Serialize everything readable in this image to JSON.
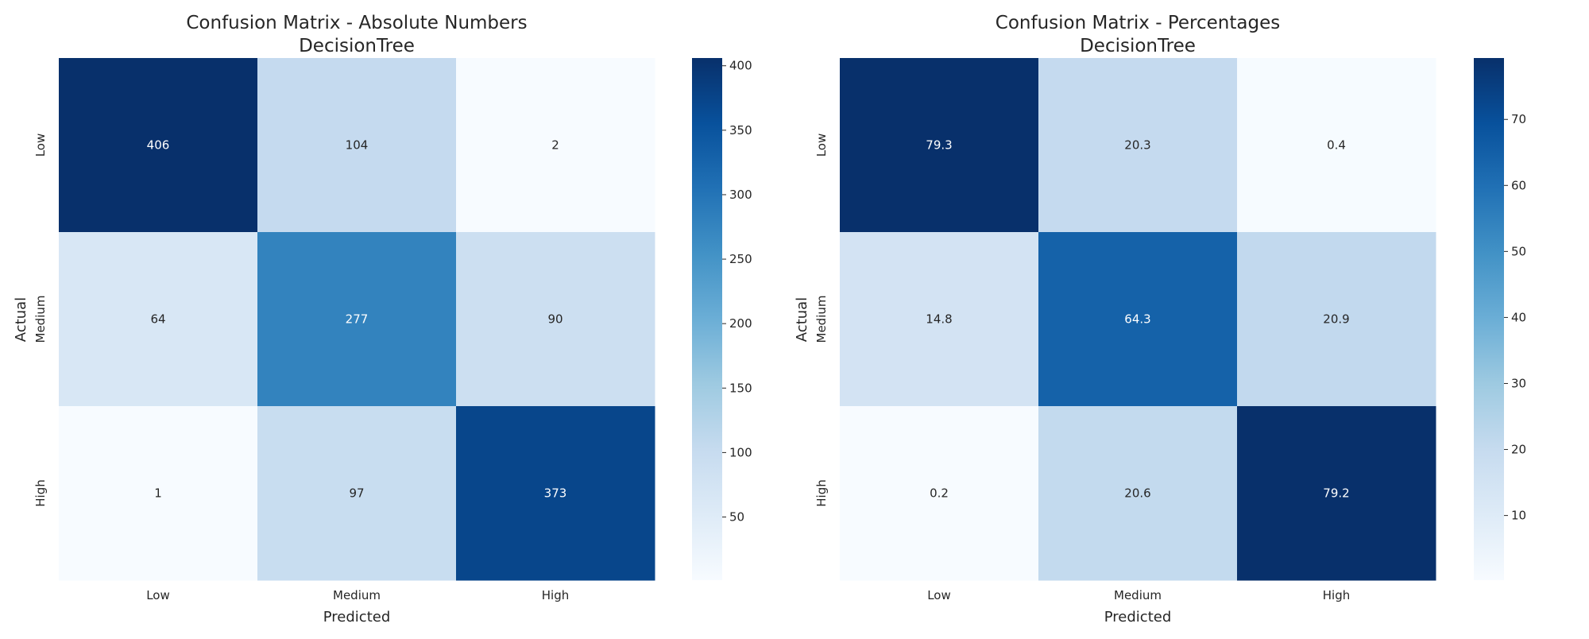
{
  "chart_data": [
    {
      "type": "heatmap",
      "title": "Confusion Matrix - Absolute Numbers",
      "subtitle": "DecisionTree",
      "xlabel": "Predicted",
      "ylabel": "Actual",
      "x_categories": [
        "Low",
        "Medium",
        "High"
      ],
      "y_categories": [
        "Low",
        "Medium",
        "High"
      ],
      "values": [
        [
          406,
          104,
          2
        ],
        [
          64,
          277,
          90
        ],
        [
          1,
          97,
          373
        ]
      ],
      "value_labels": [
        [
          "406",
          "104",
          "2"
        ],
        [
          "64",
          "277",
          "90"
        ],
        [
          "1",
          "97",
          "373"
        ]
      ],
      "colorbar": {
        "range": [
          1,
          406
        ],
        "ticks": [
          50,
          100,
          150,
          200,
          250,
          300,
          350,
          400
        ]
      },
      "colormap": "Blues",
      "grid": false
    },
    {
      "type": "heatmap",
      "title": "Confusion Matrix - Percentages",
      "subtitle": "DecisionTree",
      "xlabel": "Predicted",
      "ylabel": "Actual",
      "x_categories": [
        "Low",
        "Medium",
        "High"
      ],
      "y_categories": [
        "Low",
        "Medium",
        "High"
      ],
      "values": [
        [
          79.3,
          20.3,
          0.4
        ],
        [
          14.8,
          64.3,
          20.9
        ],
        [
          0.2,
          20.6,
          79.2
        ]
      ],
      "value_labels": [
        [
          "79.3",
          "20.3",
          "0.4"
        ],
        [
          "14.8",
          "64.3",
          "20.9"
        ],
        [
          "0.2",
          "20.6",
          "79.2"
        ]
      ],
      "colorbar": {
        "range": [
          0.2,
          79.3
        ],
        "ticks": [
          10,
          20,
          30,
          40,
          50,
          60,
          70
        ]
      },
      "colormap": "Blues",
      "grid": false
    }
  ]
}
